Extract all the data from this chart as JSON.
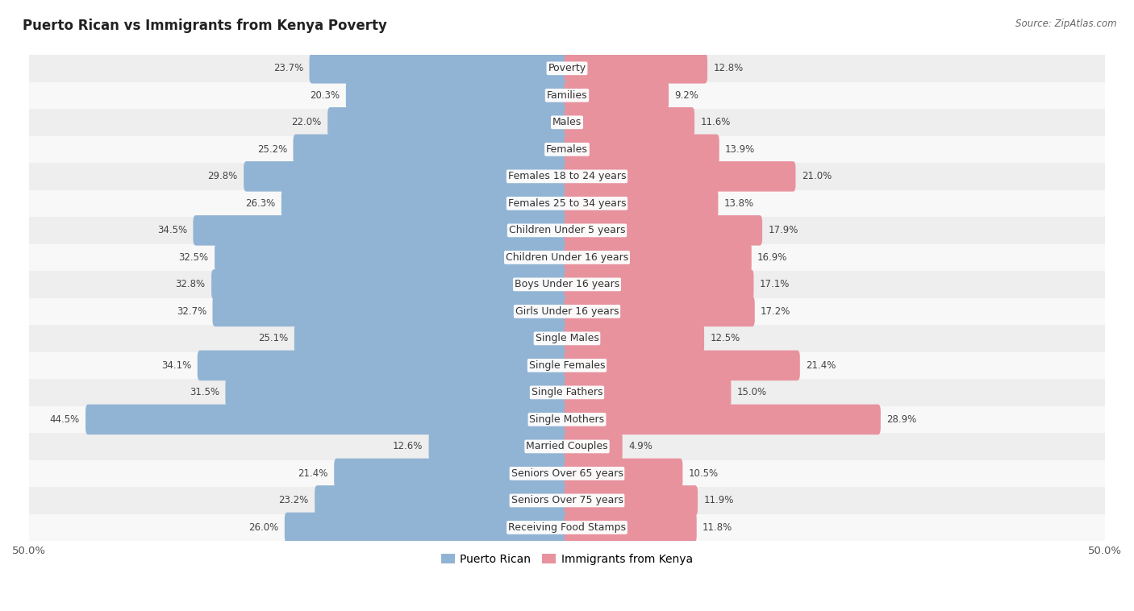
{
  "title": "Puerto Rican vs Immigrants from Kenya Poverty",
  "source": "Source: ZipAtlas.com",
  "categories": [
    "Poverty",
    "Families",
    "Males",
    "Females",
    "Females 18 to 24 years",
    "Females 25 to 34 years",
    "Children Under 5 years",
    "Children Under 16 years",
    "Boys Under 16 years",
    "Girls Under 16 years",
    "Single Males",
    "Single Females",
    "Single Fathers",
    "Single Mothers",
    "Married Couples",
    "Seniors Over 65 years",
    "Seniors Over 75 years",
    "Receiving Food Stamps"
  ],
  "puerto_rican": [
    23.7,
    20.3,
    22.0,
    25.2,
    29.8,
    26.3,
    34.5,
    32.5,
    32.8,
    32.7,
    25.1,
    34.1,
    31.5,
    44.5,
    12.6,
    21.4,
    23.2,
    26.0
  ],
  "kenya": [
    12.8,
    9.2,
    11.6,
    13.9,
    21.0,
    13.8,
    17.9,
    16.9,
    17.1,
    17.2,
    12.5,
    21.4,
    15.0,
    28.9,
    4.9,
    10.5,
    11.9,
    11.8
  ],
  "max_value": 50.0,
  "blue_color": "#92b4d4",
  "pink_color": "#e8929e",
  "row_bg_even": "#eeeeee",
  "row_bg_odd": "#f8f8f8",
  "label_fontsize": 9.0,
  "value_fontsize": 8.5,
  "title_fontsize": 12,
  "legend_labels": [
    "Puerto Rican",
    "Immigrants from Kenya"
  ]
}
